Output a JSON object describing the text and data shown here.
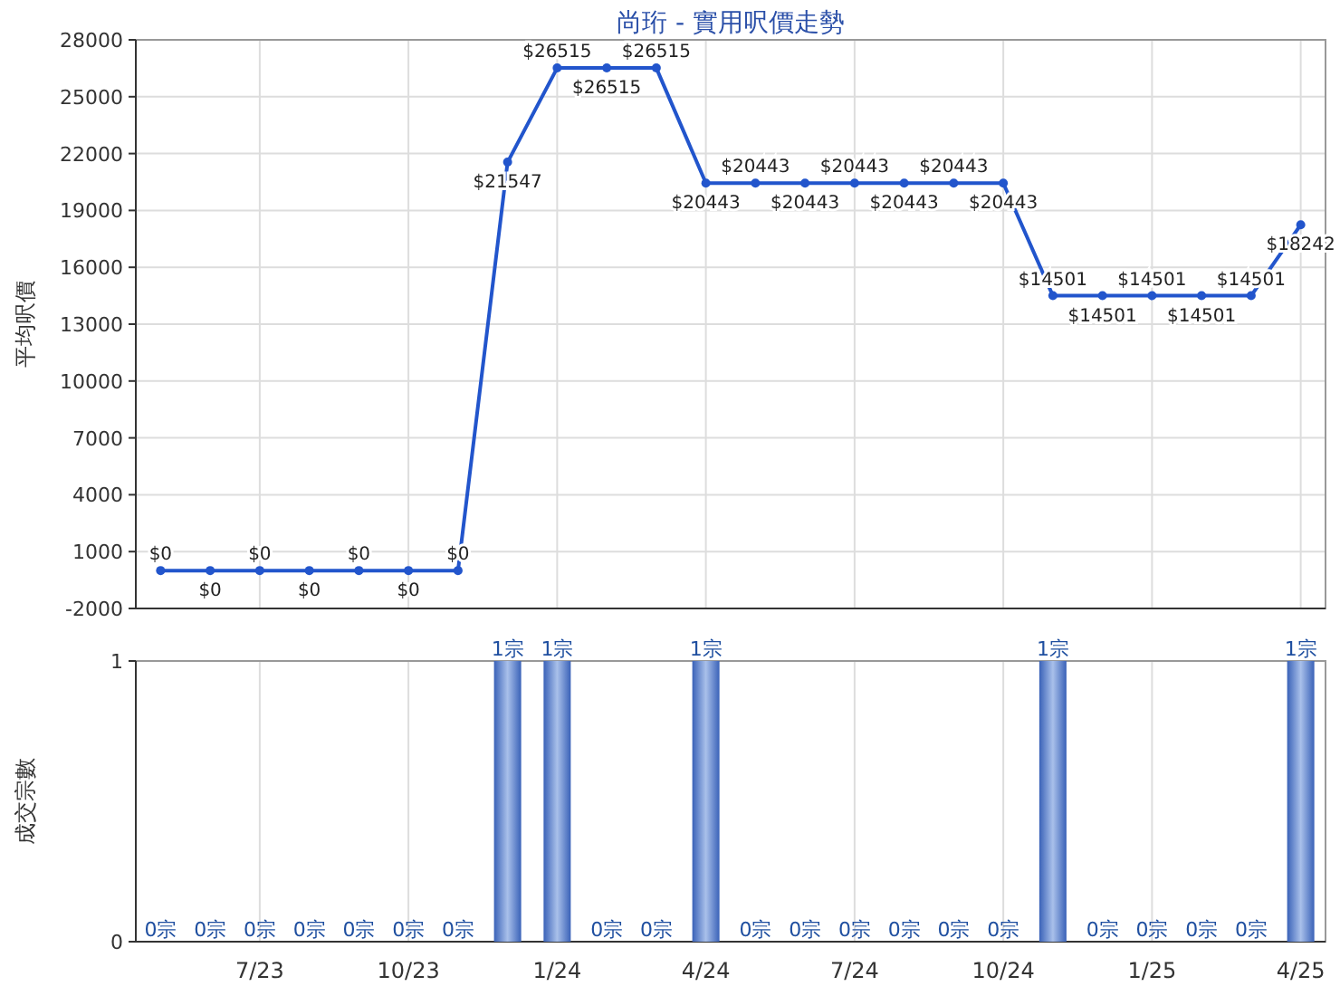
{
  "chart_data": [
    {
      "type": "line",
      "title": "尚珩 - 實用呎價走勢",
      "ylabel": "平均呎價",
      "categories": [
        null,
        null,
        null,
        null,
        null,
        null,
        null,
        null,
        null,
        null,
        null,
        null,
        null,
        null,
        null,
        null,
        null,
        null,
        null,
        null,
        null,
        null,
        null,
        null
      ],
      "values": [
        0,
        0,
        0,
        0,
        0,
        0,
        0,
        21547,
        26515,
        26515,
        26515,
        20443,
        20443,
        20443,
        20443,
        20443,
        20443,
        20443,
        14501,
        14501,
        14501,
        14501,
        14501,
        18242
      ],
      "value_labels": [
        "$0",
        "$0",
        "$0",
        "$0",
        "$0",
        "$0",
        "$0",
        "$21547",
        "$26515",
        "$26515",
        "$26515",
        "$20443",
        "$20443",
        "$20443",
        "$20443",
        "$20443",
        "$20443",
        "$20443",
        "$14501",
        "$14501",
        "$14501",
        "$14501",
        "$14501",
        "$18242"
      ],
      "color": "#2255cc",
      "ylim": [
        -2000,
        28000
      ],
      "yticks": [
        -2000,
        1000,
        4000,
        7000,
        10000,
        13000,
        16000,
        19000,
        22000,
        25000,
        28000
      ],
      "grid": true,
      "marker": "circle",
      "tick_labels": "y"
    },
    {
      "type": "bar",
      "ylabel": "成交宗數",
      "categories": [
        null,
        null,
        "7/23",
        null,
        null,
        "10/23",
        null,
        null,
        "1/24",
        null,
        null,
        "4/24",
        null,
        null,
        "7/24",
        null,
        null,
        "10/24",
        null,
        null,
        "1/25",
        null,
        null,
        "4/25"
      ],
      "values": [
        0,
        0,
        0,
        0,
        0,
        0,
        0,
        1,
        1,
        0,
        0,
        1,
        0,
        0,
        0,
        0,
        0,
        0,
        1,
        0,
        0,
        0,
        0,
        1
      ],
      "value_labels": [
        "0宗",
        "0宗",
        "0宗",
        "0宗",
        "0宗",
        "0宗",
        "0宗",
        "1宗",
        "1宗",
        "0宗",
        "0宗",
        "1宗",
        "0宗",
        "0宗",
        "0宗",
        "0宗",
        "0宗",
        "0宗",
        "1宗",
        "0宗",
        "0宗",
        "0宗",
        "0宗",
        "1宗"
      ],
      "color": "#3a62b8",
      "ylim": [
        0,
        1
      ],
      "yticks": [
        0,
        1
      ],
      "grid": true
    }
  ]
}
